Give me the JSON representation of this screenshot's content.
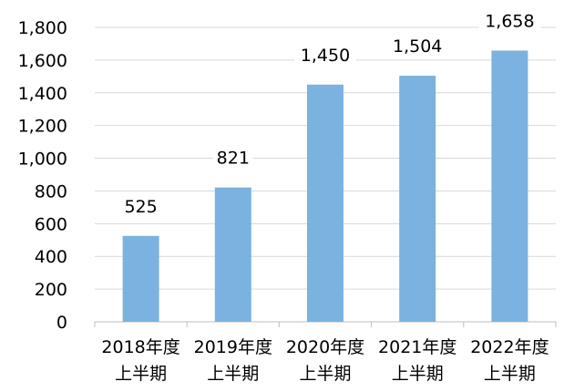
{
  "chart_data": {
    "type": "bar",
    "title": "",
    "xlabel": "",
    "ylabel": "",
    "categories": [
      [
        "2018年度",
        "上半期"
      ],
      [
        "2019年度",
        "上半期"
      ],
      [
        "2020年度",
        "上半期"
      ],
      [
        "2021年度",
        "上半期"
      ],
      [
        "2022年度",
        "上半期"
      ]
    ],
    "values": [
      525,
      821,
      1450,
      1504,
      1658
    ],
    "value_labels": [
      "525",
      "821",
      "1,450",
      "1,504",
      "1,658"
    ],
    "ylim": [
      0,
      1800
    ],
    "yticks": [
      0,
      200,
      400,
      600,
      800,
      1000,
      1200,
      1400,
      1600,
      1800
    ],
    "ytick_labels": [
      "0",
      "200",
      "400",
      "600",
      "800",
      "1,000",
      "1,200",
      "1,400",
      "1,600",
      "1,800"
    ],
    "grid": true,
    "legend": "none",
    "colors": {
      "bar": "#7bb2df",
      "grid": "#d9d9d9",
      "axis": "#bfbfbf",
      "text": "#000000"
    }
  }
}
